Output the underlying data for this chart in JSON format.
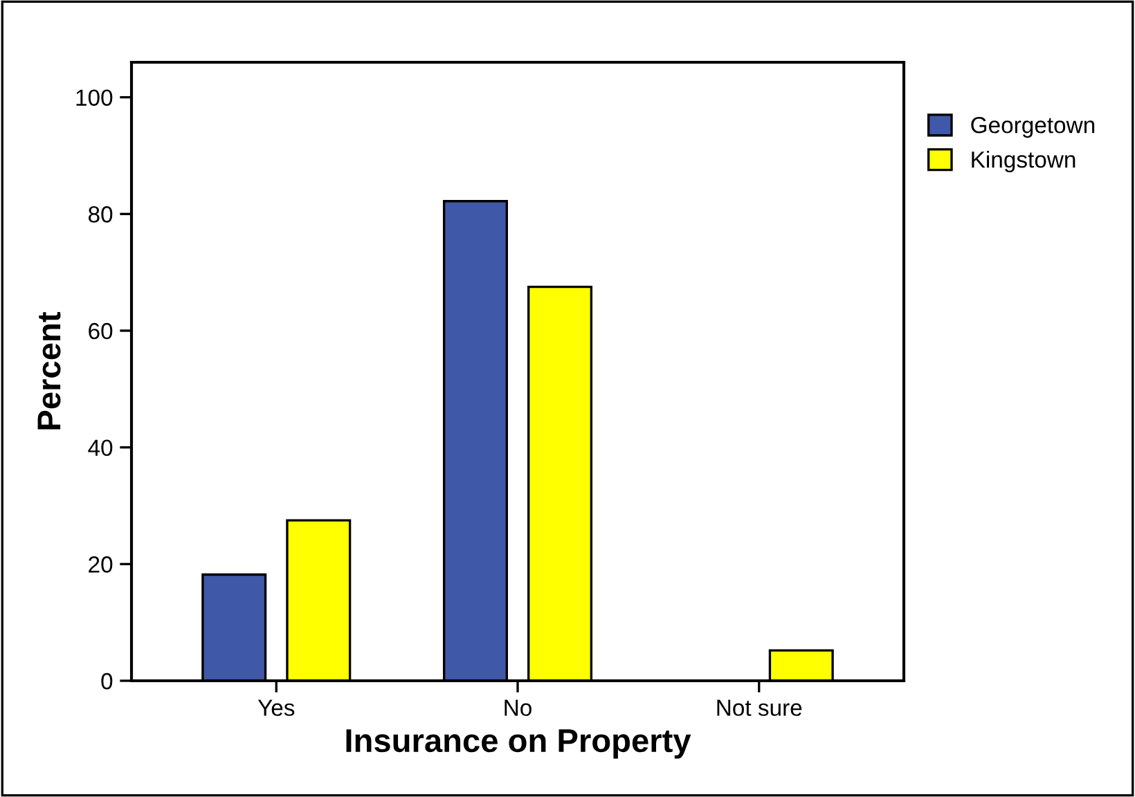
{
  "chart_data": {
    "type": "bar",
    "xlabel": "Insurance on Property",
    "ylabel": "Percent",
    "categories": [
      "Yes",
      "No",
      "Not sure"
    ],
    "series": [
      {
        "name": "Georgetown",
        "color": "#3f58a8",
        "values": [
          18.2,
          82.2,
          null
        ]
      },
      {
        "name": "Kingstown",
        "color": "#ffff00",
        "values": [
          27.5,
          67.5,
          5.2
        ]
      }
    ],
    "ylim": [
      0,
      106
    ],
    "yticks": [
      0,
      20,
      40,
      60,
      80,
      100
    ],
    "grid": false,
    "legend": "right"
  }
}
